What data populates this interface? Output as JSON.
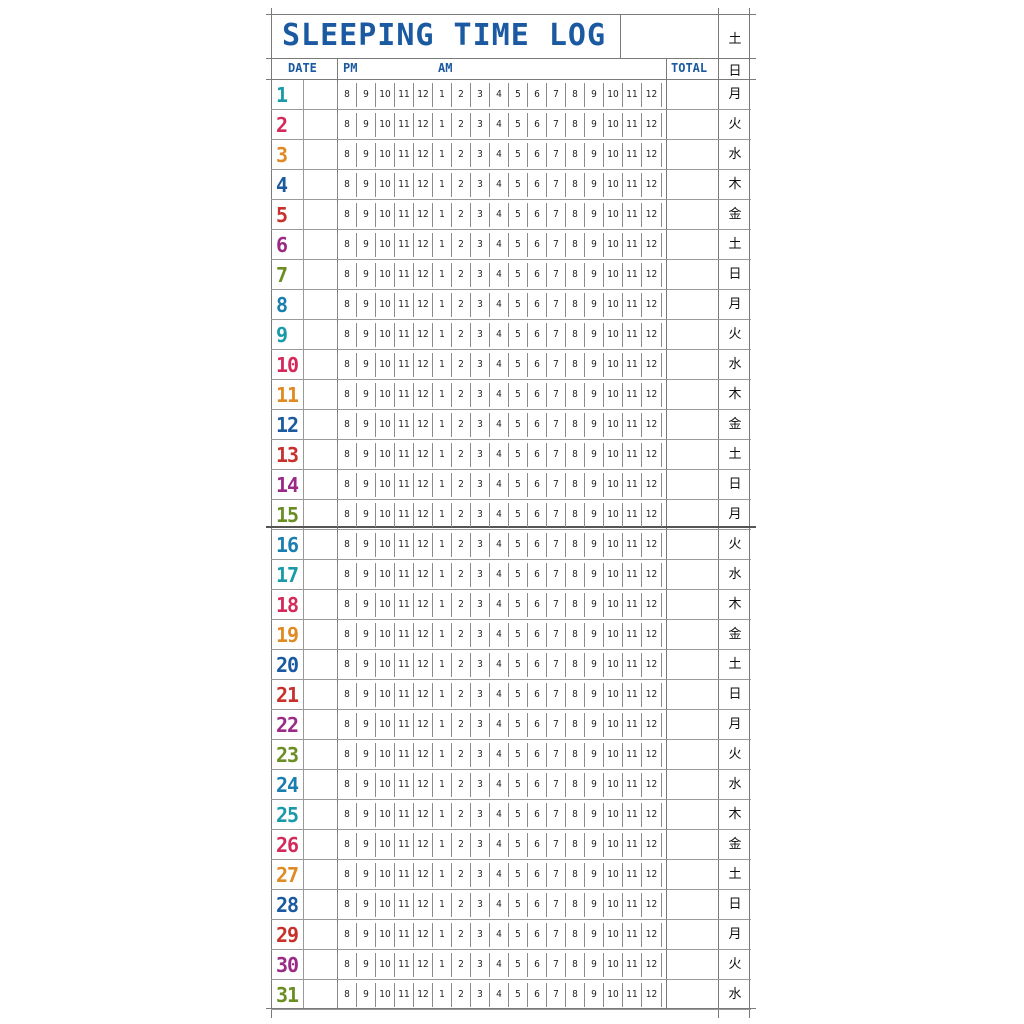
{
  "title": "SLEEPING TIME LOG",
  "header": {
    "date": "DATE",
    "pm": "PM",
    "am": "AM",
    "total": "TOTAL"
  },
  "hours": [
    "8",
    "9",
    "10",
    "11",
    "12",
    "1",
    "2",
    "3",
    "4",
    "5",
    "6",
    "7",
    "8",
    "9",
    "10",
    "11",
    "12"
  ],
  "top_weekdays": [
    "土",
    "日"
  ],
  "days": [
    {
      "num": "1",
      "color": "#1a9aa8",
      "wd": "月"
    },
    {
      "num": "2",
      "color": "#d42a5b",
      "wd": "火"
    },
    {
      "num": "3",
      "color": "#e08a24",
      "wd": "水"
    },
    {
      "num": "4",
      "color": "#1b5aa0",
      "wd": "木"
    },
    {
      "num": "5",
      "color": "#c8302c",
      "wd": "金"
    },
    {
      "num": "6",
      "color": "#9a2a86",
      "wd": "土"
    },
    {
      "num": "7",
      "color": "#6b8e23",
      "wd": "日"
    },
    {
      "num": "8",
      "color": "#1a7fb0",
      "wd": "月"
    },
    {
      "num": "9",
      "color": "#1a9aa8",
      "wd": "火"
    },
    {
      "num": "10",
      "color": "#d42a5b",
      "wd": "水"
    },
    {
      "num": "11",
      "color": "#e08a24",
      "wd": "木"
    },
    {
      "num": "12",
      "color": "#1b5aa0",
      "wd": "金"
    },
    {
      "num": "13",
      "color": "#c8302c",
      "wd": "土"
    },
    {
      "num": "14",
      "color": "#9a2a86",
      "wd": "日"
    },
    {
      "num": "15",
      "color": "#6b8e23",
      "wd": "月"
    },
    {
      "num": "16",
      "color": "#1a7fb0",
      "wd": "火"
    },
    {
      "num": "17",
      "color": "#1a9aa8",
      "wd": "水"
    },
    {
      "num": "18",
      "color": "#d42a5b",
      "wd": "木"
    },
    {
      "num": "19",
      "color": "#e08a24",
      "wd": "金"
    },
    {
      "num": "20",
      "color": "#1b5aa0",
      "wd": "土"
    },
    {
      "num": "21",
      "color": "#c8302c",
      "wd": "日"
    },
    {
      "num": "22",
      "color": "#9a2a86",
      "wd": "月"
    },
    {
      "num": "23",
      "color": "#6b8e23",
      "wd": "火"
    },
    {
      "num": "24",
      "color": "#1a7fb0",
      "wd": "水"
    },
    {
      "num": "25",
      "color": "#1a9aa8",
      "wd": "木"
    },
    {
      "num": "26",
      "color": "#d42a5b",
      "wd": "金"
    },
    {
      "num": "27",
      "color": "#e08a24",
      "wd": "土"
    },
    {
      "num": "28",
      "color": "#1b5aa0",
      "wd": "日"
    },
    {
      "num": "29",
      "color": "#c8302c",
      "wd": "月"
    },
    {
      "num": "30",
      "color": "#9a2a86",
      "wd": "火"
    },
    {
      "num": "31",
      "color": "#6b8e23",
      "wd": "水"
    }
  ]
}
